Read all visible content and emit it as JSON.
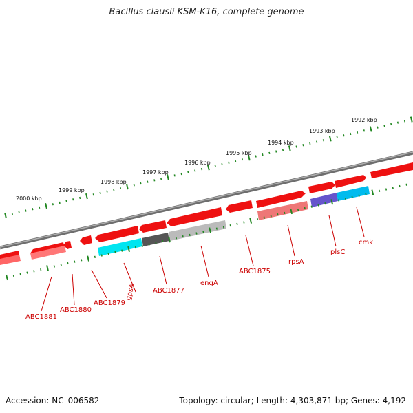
{
  "header": {
    "title": "Bacillus clausii KSM-K16, complete genome"
  },
  "footer": {
    "accession": "Accession: NC_006582",
    "summary": "Topology: circular; Length: 4,303,871 bp; Genes: 4,192"
  },
  "map": {
    "kbp_labels": [
      "2000 kbp",
      "1999 kbp",
      "1998 kbp",
      "1997 kbp",
      "1996 kbp",
      "1995 kbp",
      "1994 kbp",
      "1993 kbp",
      "1992 kbp"
    ],
    "gene_labels": [
      "ABC1881",
      "ABC1880",
      "ABC1879",
      "gpsA",
      "ABC1877",
      "engA",
      "ABC1875",
      "rpsA",
      "plsC",
      "cmk"
    ],
    "colors": {
      "backbone": "#8a8a8a",
      "cds": "#ee1111",
      "rrna": "#00ddee",
      "dark": "#555555",
      "light": "#bbbbbb",
      "pink": "#ee7777",
      "purple": "#6655cc",
      "ticks": "#228822",
      "label": "#cc0000"
    }
  }
}
